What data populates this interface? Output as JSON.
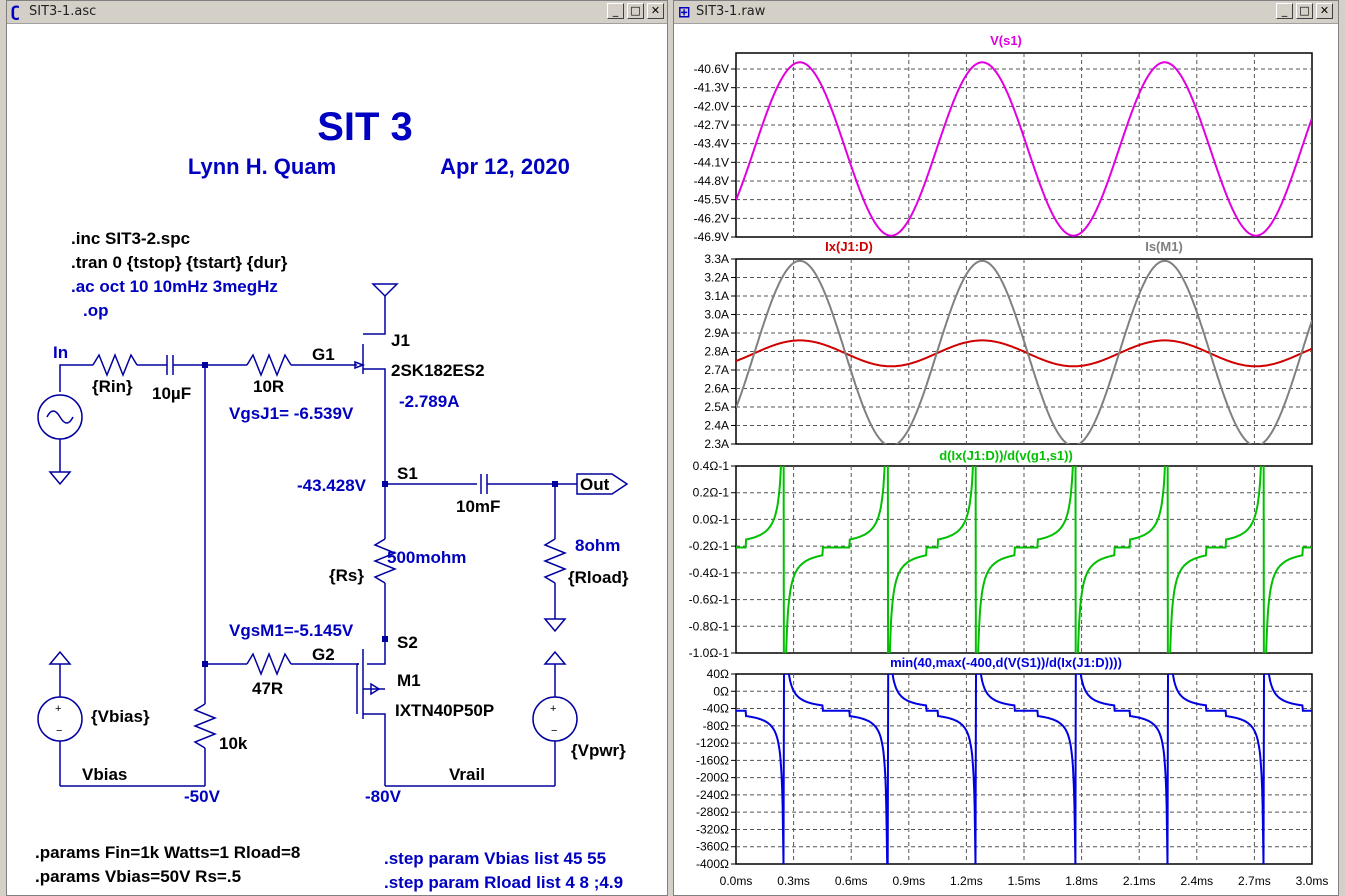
{
  "schematic_window": {
    "title": "SIT3-1.asc",
    "controls": {
      "minimize": "_",
      "restore": "□",
      "close": "✕"
    },
    "title_text": "SIT 3",
    "author": "Lynn H. Quam",
    "date": "Apr 12, 2020",
    "directives": [
      ".inc SIT3-2.spc",
      ".tran 0 {tstop} {tstart} {dur}",
      ".ac oct 10 10mHz 3megHz",
      ".op"
    ],
    "labels": {
      "in": "In",
      "rin": "{Rin}",
      "c_in": "10µF",
      "r_g1": "10R",
      "g1": "G1",
      "j1": "J1",
      "j1_part": "2SK182ES2",
      "j1_current": "-2.789A",
      "vgsj1": "VgsJ1= -6.539V",
      "s1_voltage": "-43.428V",
      "s1": "S1",
      "c_out": "10mF",
      "out": "Out",
      "rs_value": "500mohm",
      "rs": "{Rs}",
      "rload_value": "8ohm",
      "rload": "{Rload}",
      "vgsm1": "VgsM1=-5.145V",
      "s2": "S2",
      "g2": "G2",
      "r_g2": "47R",
      "m1": "M1",
      "m1_part": "IXTN40P50P",
      "vbias_src": "{Vbias}",
      "r_10k": "10k",
      "vpwr_src": "{Vpwr}",
      "vbias_net": "Vbias",
      "vrail_net": "Vrail",
      "v_50": "-50V",
      "v_80": "-80V"
    },
    "params": [
      ".params Fin=1k Watts=1 Rload=8",
      ".params Vbias=50V Rs=.5"
    ],
    "steps": [
      ".step param Vbias list 45 55",
      ".step param Rload list 4  8  ;4.9"
    ]
  },
  "waveform_window": {
    "title": "SIT3-1.raw",
    "controls": {
      "minimize": "_",
      "restore": "□",
      "close": "✕"
    },
    "x_ticks": [
      "0.0ms",
      "0.3ms",
      "0.6ms",
      "0.9ms",
      "1.2ms",
      "1.5ms",
      "1.8ms",
      "2.1ms",
      "2.4ms",
      "2.7ms",
      "3.0ms"
    ],
    "colors": {
      "vs1": "#e000e0",
      "ixj1": "#d00000",
      "ism1": "#808080",
      "deriv": "#00c000",
      "min": "#0000e0"
    }
  },
  "chart_data": [
    {
      "type": "line",
      "series": [
        {
          "name": "V(s1)",
          "period_ms": 0.95,
          "offset": -43.6,
          "amplitude": 3.25
        }
      ],
      "x_range_ms": [
        0,
        3.0
      ],
      "ylim": [
        -46.9,
        -40.0
      ],
      "y_ticks": [
        "-40.6V",
        "-41.3V",
        "-42.0V",
        "-42.7V",
        "-43.4V",
        "-44.1V",
        "-44.8V",
        "-45.5V",
        "-46.2V",
        "-46.9V"
      ],
      "grid": true
    },
    {
      "type": "line",
      "series": [
        {
          "name": "Ix(J1:D)",
          "period_ms": 0.95,
          "offset": 2.79,
          "amplitude": 0.07
        },
        {
          "name": "Is(M1)",
          "period_ms": 0.95,
          "offset": 2.79,
          "amplitude": 0.5
        }
      ],
      "x_range_ms": [
        0,
        3.0
      ],
      "ylim": [
        2.3,
        3.3
      ],
      "y_ticks": [
        "3.3A",
        "3.2A",
        "3.1A",
        "3.0A",
        "2.9A",
        "2.8A",
        "2.7A",
        "2.6A",
        "2.5A",
        "2.4A",
        "2.3A"
      ],
      "grid": true
    },
    {
      "type": "line",
      "series": [
        {
          "name": "d(Ix(J1:D))/d(v(g1,s1))",
          "baseline": -0.21
        }
      ],
      "x_range_ms": [
        0,
        3.0
      ],
      "ylim": [
        -1.0,
        0.4
      ],
      "y_ticks": [
        "0.4Ω-1",
        "0.2Ω-1",
        "0.0Ω-1",
        "-0.2Ω-1",
        "-0.4Ω-1",
        "-0.6Ω-1",
        "-0.8Ω-1",
        "-1.0Ω-1"
      ],
      "grid": true
    },
    {
      "type": "line",
      "series": [
        {
          "name": "min(40,max(-400,d(V(S1))/d(Ix(J1:D))))",
          "baseline": -45
        }
      ],
      "x_range_ms": [
        0,
        3.0
      ],
      "ylim": [
        -400,
        40
      ],
      "y_ticks": [
        "40Ω",
        "0Ω",
        "-40Ω",
        "-80Ω",
        "-120Ω",
        "-160Ω",
        "-200Ω",
        "-240Ω",
        "-280Ω",
        "-320Ω",
        "-360Ω",
        "-400Ω"
      ],
      "grid": true
    }
  ]
}
